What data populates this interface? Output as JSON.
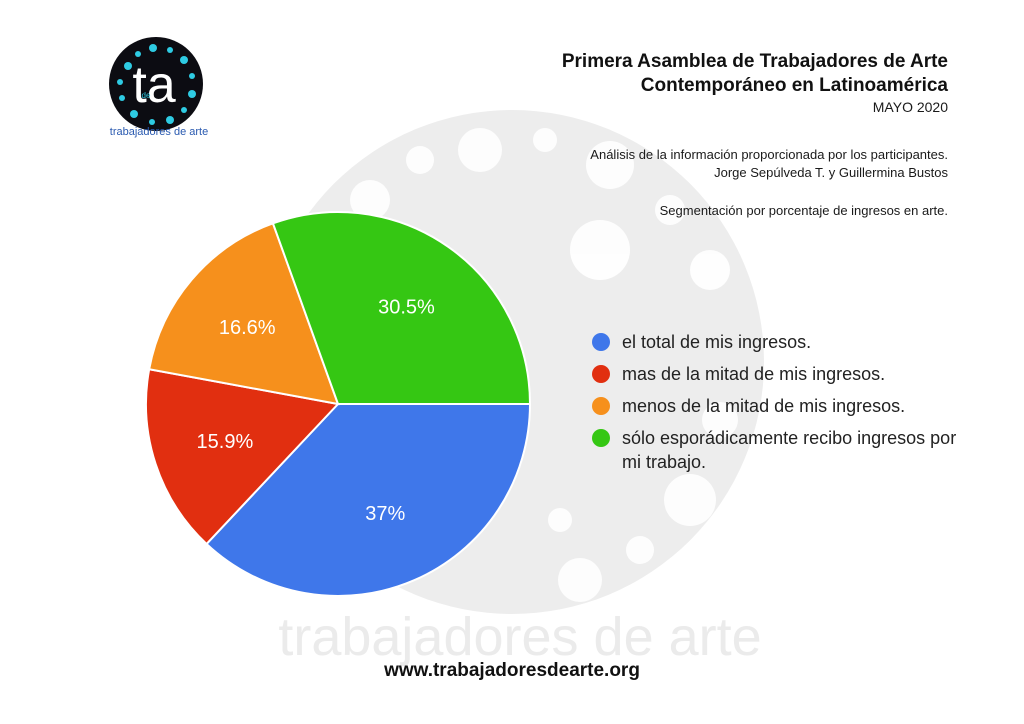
{
  "logo": {
    "letters": "ta",
    "small": "de",
    "caption": "trabajadores de arte"
  },
  "header": {
    "title_line1": "Primera Asamblea de Trabajadores de Arte",
    "title_line2": "Contemporáneo en Latinoamérica",
    "date": "MAYO 2020",
    "credits_line1": "Análisis de la información proporcionada por los participantes.",
    "credits_line2": "Jorge Sepúlveda T. y Guillermina Bustos",
    "segment": "Segmentación por porcentaje de ingresos en arte."
  },
  "watermark_text": "trabajadores de arte",
  "footer": "www.trabajadoresdearte.org",
  "colors": {
    "blue": "#3f77ea",
    "red": "#e12f10",
    "orange": "#f6901c",
    "green": "#35c713",
    "watermark": "#ebebeb"
  },
  "chart_data": {
    "type": "pie",
    "slices": [
      {
        "label": "el total de mis ingresos.",
        "value": 37,
        "display": "37%",
        "color": "#3f77ea"
      },
      {
        "label": "mas de la mitad de mis ingresos.",
        "value": 15.9,
        "display": "15.9%",
        "color": "#e12f10"
      },
      {
        "label": "menos de la mitad de mis ingresos.",
        "value": 16.6,
        "display": "16.6%",
        "color": "#f6901c"
      },
      {
        "label": "sólo esporádicamente recibo ingresos por mi trabajo.",
        "value": 30.5,
        "display": "30.5%",
        "color": "#35c713"
      }
    ],
    "legend_position": "right"
  }
}
